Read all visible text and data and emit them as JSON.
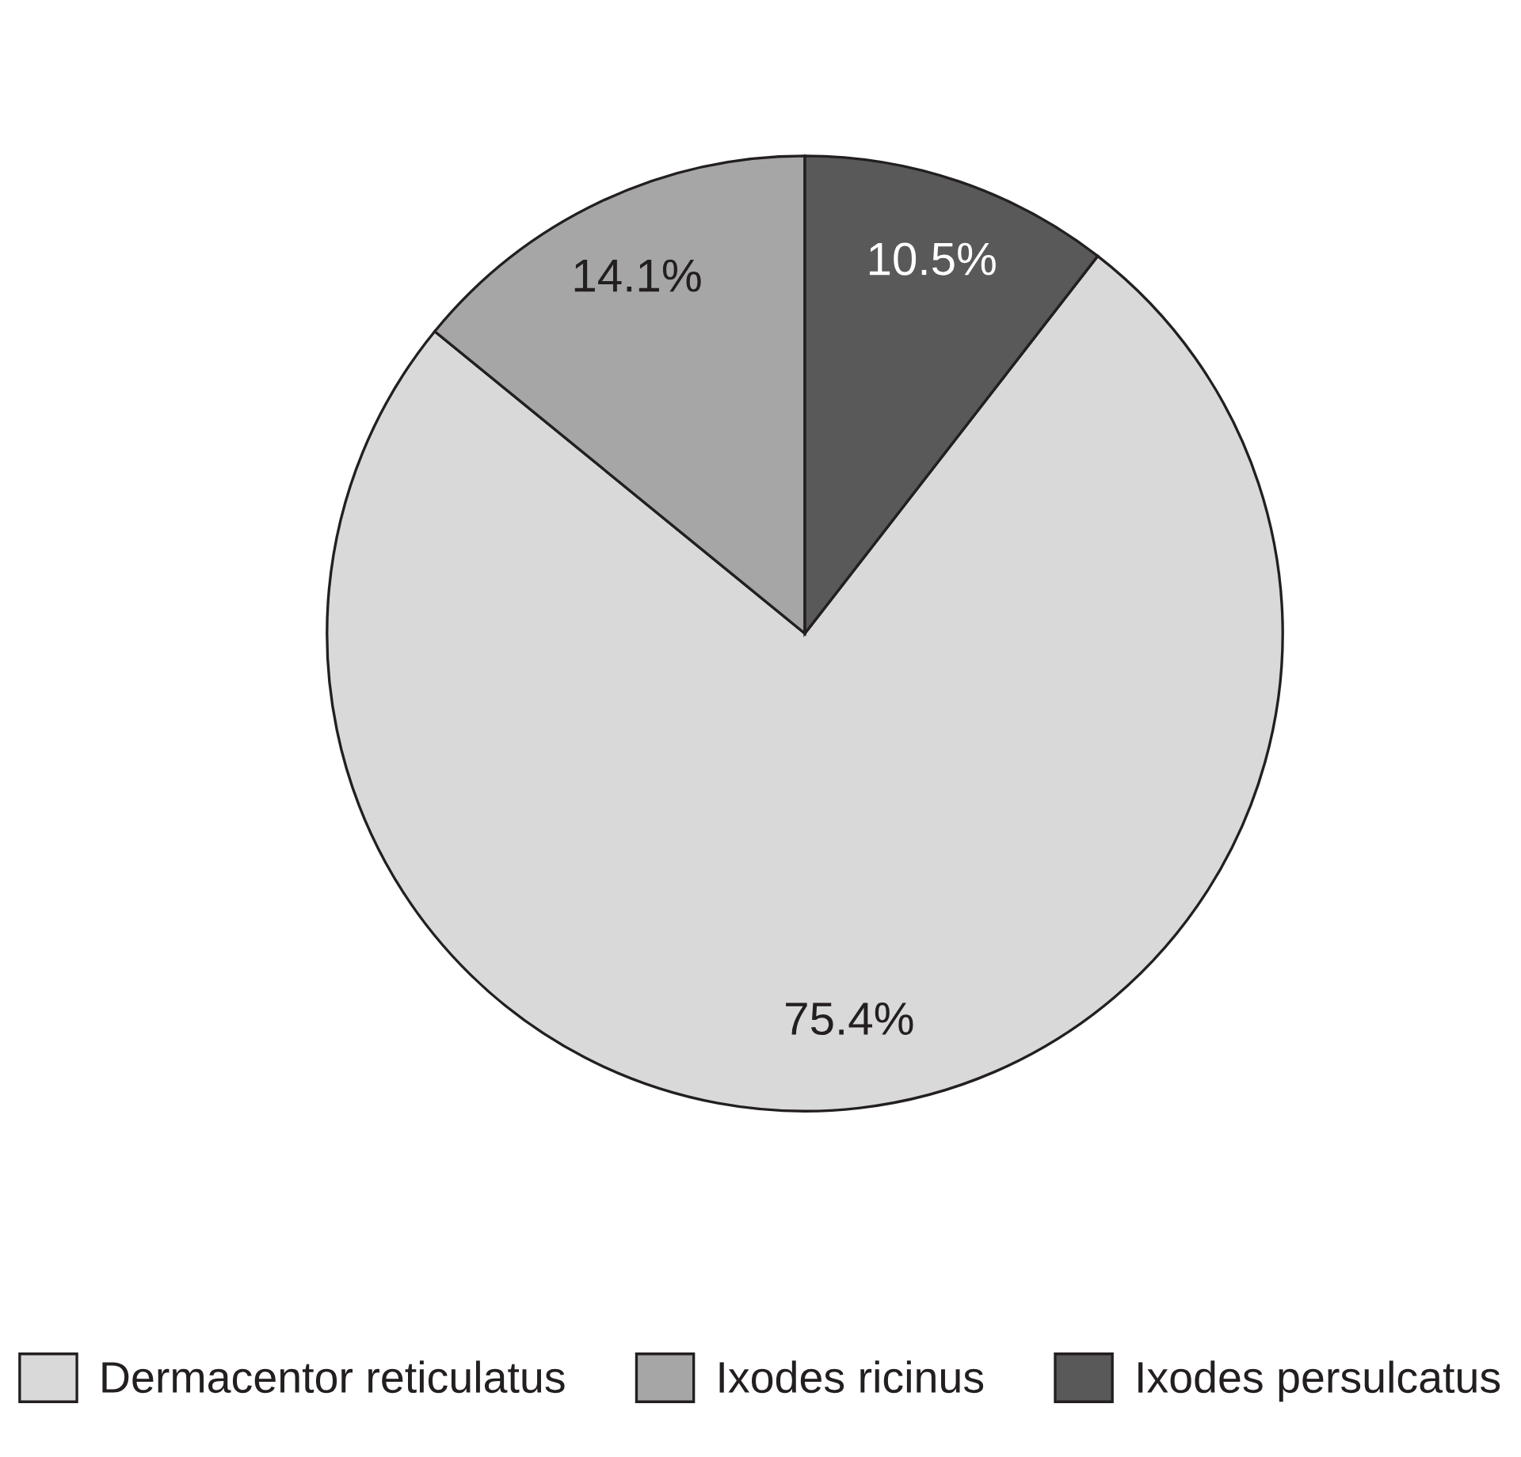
{
  "chart_data": {
    "type": "pie",
    "categories": [
      "Dermacentor reticulatus",
      "Ixodes ricinus",
      "Ixodes persulcatus"
    ],
    "values": [
      75.4,
      14.1,
      10.5
    ],
    "colors": [
      "#d9d9d9",
      "#a6a6a6",
      "#595959"
    ],
    "value_labels": [
      "75.4%",
      "14.1%",
      "10.5%"
    ],
    "legend": "bottom"
  }
}
